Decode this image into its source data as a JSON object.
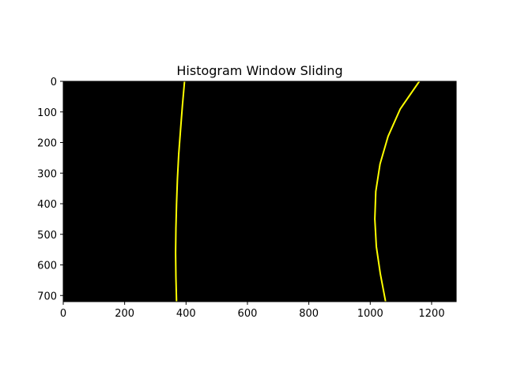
{
  "chart_data": {
    "type": "line",
    "title": "Histogram Window Sliding",
    "xlabel": "",
    "ylabel": "",
    "xlim": [
      0,
      1280
    ],
    "ylim": [
      720,
      0
    ],
    "y_axis_inverted": true,
    "x_ticks": [
      0,
      200,
      400,
      600,
      800,
      1000,
      1200
    ],
    "y_ticks": [
      0,
      100,
      200,
      300,
      400,
      500,
      600,
      700
    ],
    "x_tick_labels": [
      "0",
      "200",
      "400",
      "600",
      "800",
      "1000",
      "1200"
    ],
    "y_tick_labels": [
      "0",
      "100",
      "200",
      "300",
      "400",
      "500",
      "600",
      "700"
    ],
    "grid": false,
    "legend": "none",
    "background_color": "#000000",
    "series": [
      {
        "color": "#ffff00",
        "x": [
          395,
          388,
          382,
          376,
          372,
          369,
          367,
          366,
          367,
          369
        ],
        "y": [
          0,
          80,
          160,
          240,
          320,
          400,
          480,
          560,
          640,
          720
        ]
      },
      {
        "color": "#ffff00",
        "x": [
          1160,
          1098,
          1058,
          1032,
          1018,
          1015,
          1020,
          1033,
          1050
        ],
        "y": [
          0,
          90,
          180,
          270,
          360,
          450,
          540,
          630,
          720
        ]
      }
    ]
  }
}
